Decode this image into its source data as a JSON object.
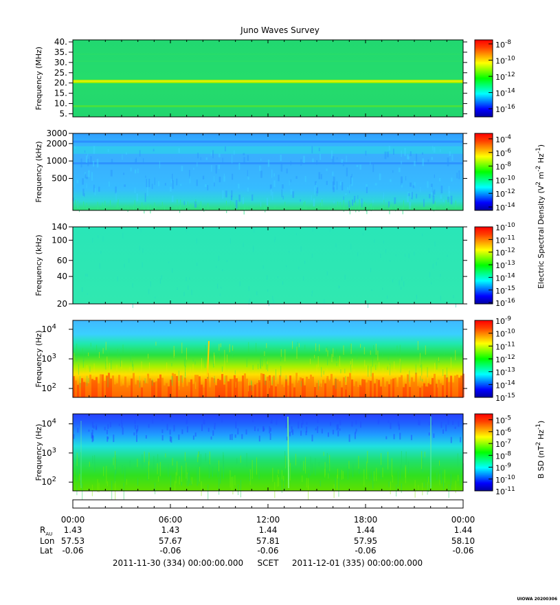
{
  "title": "Juno Waves Survey",
  "footer": "UIOWA 20200306",
  "colors": {
    "colormap": [
      "#0000a0",
      "#0000ff",
      "#0080ff",
      "#00ffff",
      "#00ff80",
      "#00ff00",
      "#80ff00",
      "#ffff00",
      "#ffa000",
      "#ff4000",
      "#ff0000"
    ]
  },
  "chart_data": [
    {
      "type": "heatmap",
      "ylabel": "Frequency (MHz)",
      "yscale": "linear",
      "ylim": [
        3.5,
        41
      ],
      "yticks": [
        "40.",
        "35.",
        "30.",
        "25.",
        "20.",
        "15.",
        "10.",
        "5."
      ],
      "ytick_values": [
        40,
        35,
        30,
        25,
        20,
        15,
        10,
        5
      ],
      "colorbar_ticks": [
        "10-8",
        "10-10",
        "10-12",
        "10-14",
        "10-16"
      ],
      "colorbar_exponents": [
        -8,
        -10,
        -12,
        -14,
        -16
      ],
      "colorbar_range": [
        -17,
        -7.5
      ],
      "description": "uniform green background; bright band near 21 MHz; faint band near 9 MHz"
    },
    {
      "type": "heatmap",
      "ylabel": "Frequency (kHz)",
      "yscale": "log",
      "ylim": [
        140,
        3000
      ],
      "yticks": [
        "3000",
        "2000",
        "1000",
        "500"
      ],
      "ytick_values": [
        3000,
        2000,
        1000,
        500
      ],
      "colorbar_ticks": [
        "10-4",
        "10-6",
        "10-8",
        "10-10",
        "10-12",
        "10-14"
      ],
      "colorbar_exponents": [
        -4,
        -6,
        -8,
        -10,
        -12,
        -14
      ],
      "colorbar_range": [
        -14.5,
        -3.2
      ],
      "colorbar_label": "Electric Spectral Density (V2 m-2 Hz-1)",
      "description": "cyan-blue background with a bright band near 1700 kHz and green at lowest frequencies"
    },
    {
      "type": "heatmap",
      "ylabel": "Frequency (kHz)",
      "yscale": "log",
      "ylim": [
        20,
        140
      ],
      "yticks": [
        "140",
        "100",
        "60",
        "40",
        "20"
      ],
      "ytick_values": [
        140,
        100,
        60,
        40,
        20
      ],
      "colorbar_ticks": [
        "10-10",
        "10-11",
        "10-12",
        "10-13",
        "10-14",
        "10-15",
        "10-16"
      ],
      "colorbar_exponents": [
        -10,
        -11,
        -12,
        -13,
        -14,
        -15,
        -16
      ],
      "colorbar_range": [
        -16.1,
        -10
      ],
      "description": "nearly uniform cyan-green"
    },
    {
      "type": "heatmap",
      "ylabel": "Frequency (Hz)",
      "yscale": "log",
      "ylim": [
        50,
        20000
      ],
      "yticks": [
        "10^4",
        "10^3",
        "10^2"
      ],
      "ytick_values": [
        10000,
        1000,
        100
      ],
      "colorbar_ticks": [
        "10-9",
        "10-10",
        "10-11",
        "10-12",
        "10-13",
        "10-14",
        "10-15"
      ],
      "colorbar_exponents": [
        -9,
        -10,
        -11,
        -12,
        -13,
        -14,
        -15
      ],
      "colorbar_range": [
        -15,
        -9
      ],
      "description": "cyan above 3 kHz, green mid, yellow-orange-red below 300 Hz; vertical spike near 08:20"
    },
    {
      "type": "heatmap",
      "ylabel": "Frequency (Hz)",
      "yscale": "log",
      "ylim": [
        50,
        22000
      ],
      "yticks": [
        "10^4",
        "10^3",
        "10^2"
      ],
      "ytick_values": [
        10000,
        1000,
        100
      ],
      "colorbar_ticks": [
        "10-5",
        "10-6",
        "10-7",
        "10-8",
        "10-9",
        "10-10",
        "10-11"
      ],
      "colorbar_exponents": [
        -5,
        -6,
        -7,
        -8,
        -9,
        -10,
        -11
      ],
      "colorbar_range": [
        -11,
        -4.5
      ],
      "colorbar_label": "B SD (nT2 Hz-1)",
      "description": "blue above 5 kHz, cyan mid, green below 1 kHz; spikes near 13:10 and 22:30"
    }
  ],
  "xaxis": {
    "times": [
      "00:00",
      "06:00",
      "12:00",
      "18:00",
      "00:00"
    ],
    "tick_hours": [
      0,
      6,
      12,
      18,
      24
    ],
    "rows": [
      {
        "label": "R",
        "label_sub": "AU",
        "values": [
          "1.43",
          "1.43",
          "1.44",
          "1.44",
          "1.44"
        ]
      },
      {
        "label": "Lon",
        "label_sub": "",
        "values": [
          "57.53",
          "57.67",
          "57.81",
          "57.95",
          "58.10"
        ]
      },
      {
        "label": "Lat",
        "label_sub": "",
        "values": [
          "-0.06",
          "-0.06",
          "-0.06",
          "-0.06",
          "-0.06"
        ]
      }
    ],
    "start": "2011-11-30 (334) 00:00:00.000",
    "scet": "SCET",
    "end": "2011-12-01 (335) 00:00:00.000"
  }
}
